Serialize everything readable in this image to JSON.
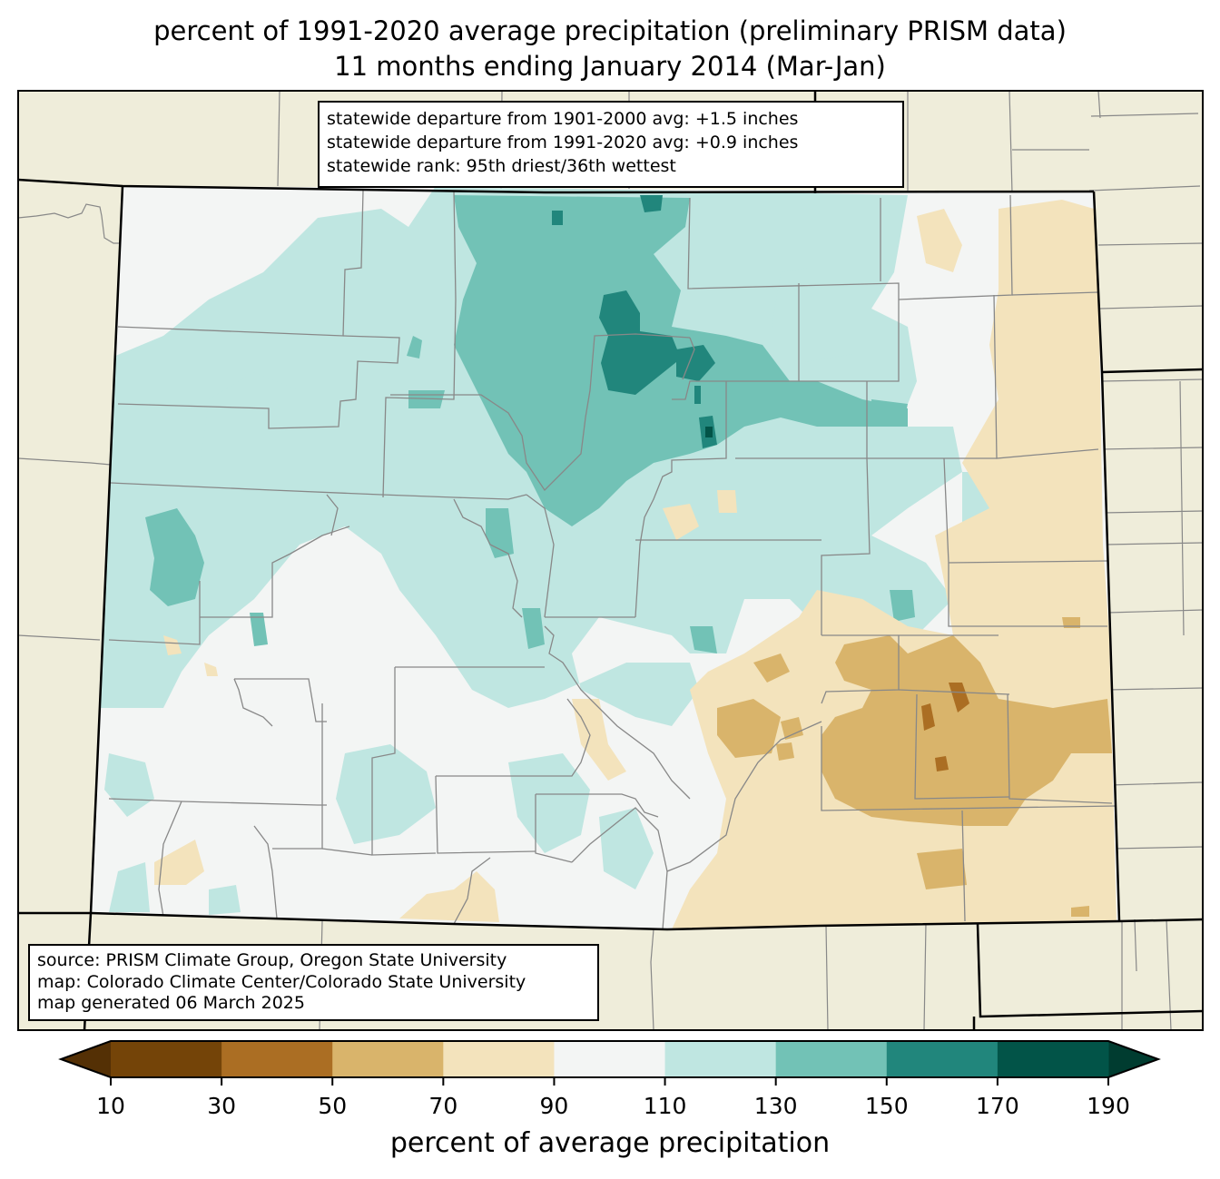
{
  "title": {
    "line1": "percent of 1991-2020 average precipitation (preliminary PRISM data)",
    "line2": "11 months ending January 2014 (Mar-Jan)"
  },
  "stats_box": {
    "lines": [
      "statewide departure from 1901-2000 avg: +1.5 inches",
      "statewide departure from 1991-2020 avg: +0.9 inches",
      "statewide rank: 95th driest/36th wettest"
    ]
  },
  "source_box": {
    "lines": [
      "source: PRISM Climate Group, Oregon State University",
      "map: Colorado Climate Center/Colorado State University",
      "map generated 06 March 2025"
    ]
  },
  "colors": {
    "land_outside": "#efedda",
    "state_border": "#000000",
    "county_border": "#888888"
  },
  "chart_data": {
    "type": "heatmap",
    "title": "percent of 1991-2020 average precipitation (preliminary PRISM data) — 11 months ending January 2014 (Mar-Jan)",
    "region": "Colorado",
    "colorbar": {
      "label": "percent of average precipitation",
      "ticks": [
        10,
        30,
        50,
        70,
        90,
        110,
        130,
        150,
        170,
        190
      ],
      "tick_labels": [
        "10",
        "30",
        "50",
        "70",
        "90",
        "110",
        "130",
        "150",
        "170",
        "190"
      ],
      "extend": "both",
      "under_color": "#543005",
      "over_color": "#003c30",
      "bins": [
        {
          "min": 10,
          "max": 30,
          "color": "#744408"
        },
        {
          "min": 30,
          "max": 50,
          "color": "#ab6e23"
        },
        {
          "min": 50,
          "max": 70,
          "color": "#d9b46b"
        },
        {
          "min": 70,
          "max": 90,
          "color": "#f3e3bc"
        },
        {
          "min": 90,
          "max": 110,
          "color": "#f3f5f4"
        },
        {
          "min": 110,
          "max": 130,
          "color": "#bfe6e1"
        },
        {
          "min": 130,
          "max": 150,
          "color": "#72c2b6"
        },
        {
          "min": 150,
          "max": 170,
          "color": "#21867c"
        },
        {
          "min": 170,
          "max": 190,
          "color": "#025448"
        }
      ]
    },
    "summary": {
      "wet_areas": "northern mountains and Front Range (110-190%)",
      "dry_areas": "southeastern plains (30-90%)",
      "near_normal": "western valleys and San Luis Valley (90-110%)"
    }
  }
}
